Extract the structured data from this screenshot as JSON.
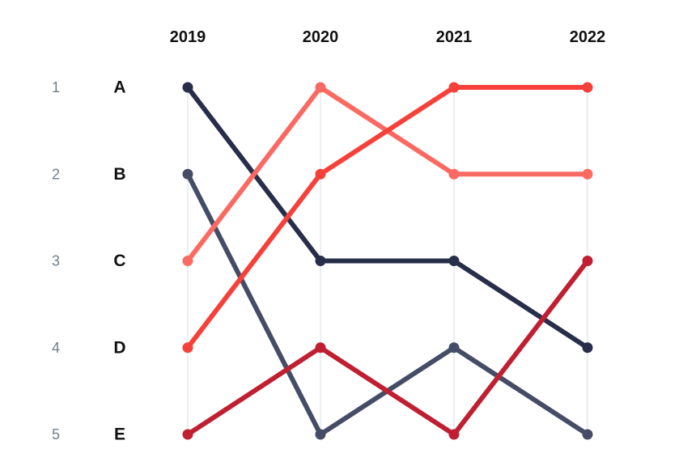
{
  "chart_data": {
    "type": "line",
    "subtype": "bump",
    "x": [
      "2019",
      "2020",
      "2021",
      "2022"
    ],
    "ranks": [
      "1",
      "2",
      "3",
      "4",
      "5"
    ],
    "row_labels": [
      "A",
      "B",
      "C",
      "D",
      "E"
    ],
    "y_axis": {
      "reversed": true,
      "range": [
        1,
        5
      ]
    },
    "grid": {
      "vertical": true,
      "horizontal": false
    },
    "legend": "none",
    "series": [
      {
        "color": "#262e4a",
        "values": [
          1,
          3,
          3,
          4
        ]
      },
      {
        "color": "#454d66",
        "values": [
          2,
          5,
          4,
          5
        ]
      },
      {
        "color": "#fa6a62",
        "values": [
          3,
          1,
          2,
          2
        ]
      },
      {
        "color": "#f5413a",
        "values": [
          4,
          2,
          1,
          1
        ]
      },
      {
        "color": "#bf1f31",
        "values": [
          5,
          4,
          5,
          3
        ]
      }
    ]
  }
}
